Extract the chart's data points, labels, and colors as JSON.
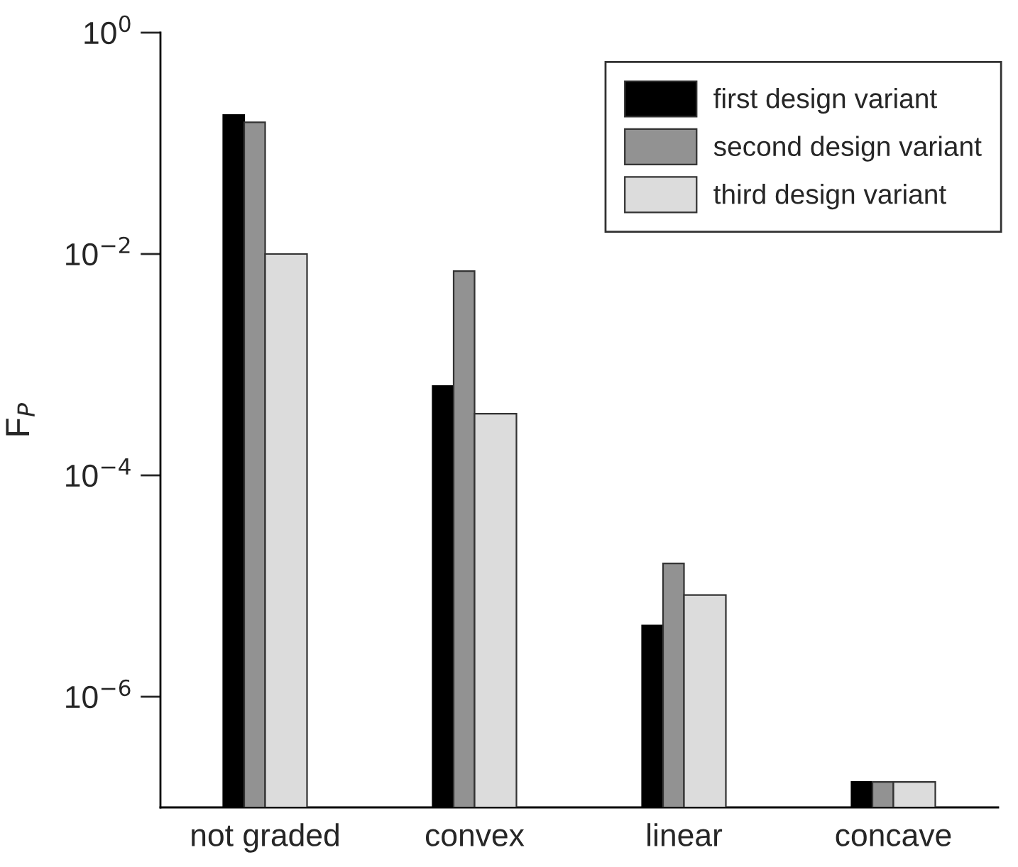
{
  "chart_data": {
    "type": "bar",
    "ylabel": "F$_{P}$",
    "categories": [
      "not graded",
      "convex",
      "linear",
      "concave"
    ],
    "series": [
      {
        "name": "first design variant",
        "color": "#000000",
        "values": [
          0.18,
          0.00064,
          4.4e-06,
          1.7e-07
        ]
      },
      {
        "name": "second design variant",
        "color": "#929292",
        "values": [
          0.155,
          0.007,
          1.6e-05,
          1.7e-07
        ]
      },
      {
        "name": "third design variant",
        "color": "#dcdcdc",
        "values": [
          0.01,
          0.00036,
          8.3e-06,
          1.7e-07
        ]
      }
    ],
    "log": "y",
    "ylim": [
      1e-07,
      1
    ],
    "yticks": [
      {
        "value": 1e-06,
        "label": "10$^{−6}$"
      },
      {
        "value": 0.0001,
        "label": "10$^{−4}$"
      },
      {
        "value": 0.01,
        "label": "10$^{−2}$"
      },
      {
        "value": 1,
        "label": "10$^{0}$"
      }
    ],
    "grid": false,
    "legend": "top right"
  }
}
